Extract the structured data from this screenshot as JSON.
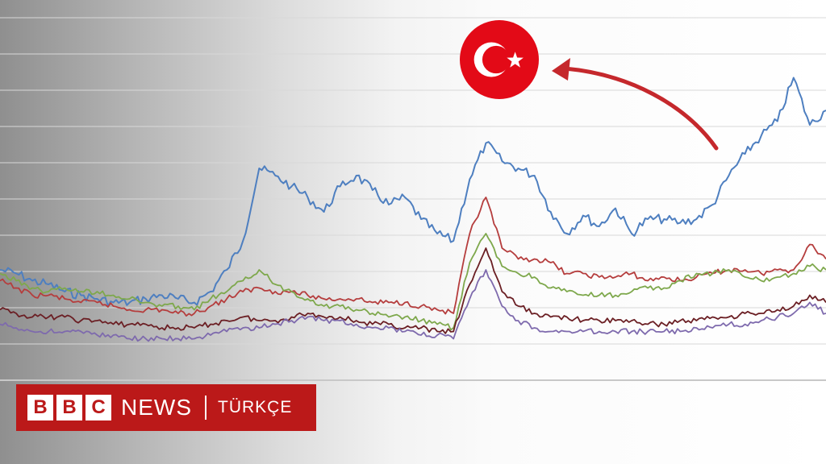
{
  "branding": {
    "blocks": [
      "B",
      "B",
      "C"
    ],
    "name": "NEWS",
    "service": "TÜRKÇE",
    "color": "#bb1919"
  },
  "flag": {
    "icon": "turkey-flag-icon",
    "color": "#e30a17"
  },
  "chart_data": {
    "type": "line",
    "title": "",
    "xlabel": "",
    "ylabel": "",
    "x": [
      0,
      1,
      2,
      3,
      4,
      5,
      6,
      7,
      8,
      9,
      10,
      11,
      12,
      13,
      14,
      15,
      16,
      17,
      18,
      19,
      20,
      21,
      22,
      23,
      24,
      25,
      26,
      27,
      28,
      29,
      30,
      31,
      32,
      33,
      34,
      35,
      36,
      37,
      38,
      39,
      40,
      41,
      42,
      43,
      44,
      45,
      46,
      47,
      48,
      49,
      50,
      51
    ],
    "ylim": [
      0,
      100
    ],
    "grid": true,
    "series": [
      {
        "color": "#4e7fc0",
        "values": [
          30,
          29,
          27,
          26,
          24,
          23,
          22,
          21,
          21,
          22,
          23,
          22,
          21,
          24,
          30,
          38,
          58,
          56,
          53,
          50,
          46,
          53,
          56,
          52,
          48,
          50,
          44,
          40,
          38,
          55,
          65,
          60,
          58,
          56,
          46,
          40,
          45,
          42,
          47,
          40,
          44,
          44,
          43,
          44,
          48,
          56,
          62,
          67,
          71,
          83,
          70,
          74
        ]
      },
      {
        "color": "#b53d3d",
        "values": [
          27,
          25,
          23,
          23,
          22,
          21,
          21,
          20,
          19,
          19,
          19,
          18,
          18,
          20,
          22,
          24,
          25,
          24,
          24,
          23,
          22,
          22,
          22,
          21,
          21,
          21,
          20,
          19,
          18,
          40,
          50,
          36,
          33,
          33,
          32,
          29,
          29,
          28,
          28,
          29,
          27,
          28,
          27,
          28,
          29,
          30,
          30,
          29,
          30,
          30,
          37,
          33
        ]
      },
      {
        "color": "#7ea84c",
        "values": [
          29,
          27,
          25,
          24,
          25,
          24,
          24,
          23,
          22,
          21,
          20,
          20,
          19,
          22,
          24,
          27,
          30,
          26,
          24,
          22,
          20,
          20,
          19,
          18,
          17,
          17,
          16,
          15,
          14,
          32,
          40,
          31,
          29,
          28,
          25,
          24,
          23,
          23,
          23,
          24,
          25,
          25,
          27,
          29,
          29,
          30,
          28,
          27,
          28,
          29,
          31,
          30
        ]
      },
      {
        "color": "#6b1f24",
        "values": [
          19,
          18,
          17,
          17,
          17,
          16,
          16,
          15,
          15,
          15,
          14,
          14,
          14,
          15,
          16,
          17,
          16,
          16,
          17,
          18,
          17,
          17,
          16,
          15,
          15,
          14,
          14,
          13,
          13,
          26,
          36,
          24,
          20,
          18,
          17,
          17,
          16,
          16,
          16,
          16,
          15,
          15,
          16,
          16,
          17,
          17,
          18,
          18,
          19,
          20,
          23,
          21
        ]
      },
      {
        "color": "#7e6aad",
        "values": [
          15,
          14,
          13,
          13,
          13,
          13,
          12,
          12,
          11,
          11,
          11,
          11,
          11,
          12,
          13,
          14,
          14,
          15,
          16,
          17,
          16,
          16,
          15,
          14,
          14,
          13,
          12,
          12,
          11,
          22,
          30,
          20,
          16,
          14,
          13,
          13,
          13,
          13,
          13,
          13,
          13,
          13,
          13,
          14,
          14,
          15,
          15,
          16,
          17,
          18,
          21,
          18
        ]
      }
    ]
  }
}
